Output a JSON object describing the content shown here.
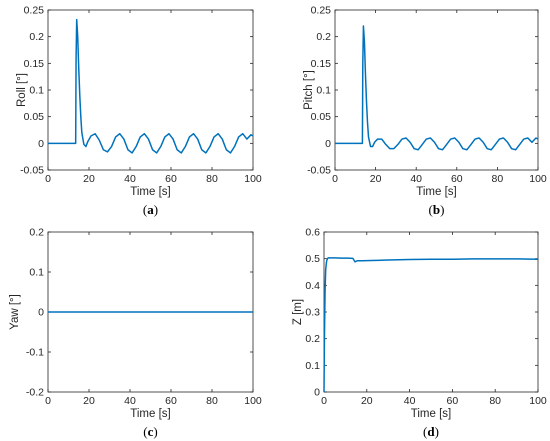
{
  "chart_data": [
    {
      "type": "line",
      "sublabel_open": "(",
      "sublabel_letter": "a",
      "sublabel_close": ")",
      "xlabel": "Time [s]",
      "ylabel": "Roll [°]",
      "xlim": [
        0,
        100
      ],
      "ylim": [
        -0.05,
        0.25
      ],
      "xticks": [
        "0",
        "20",
        "40",
        "60",
        "80",
        "100"
      ],
      "yticks": [
        "-0.05",
        "0",
        "0.05",
        "0.1",
        "0.15",
        "0.2",
        "0.25"
      ],
      "grid": false,
      "color": "#0072BD",
      "series": [
        {
          "x": [
            0,
            13.5,
            13.7,
            14.0,
            14.5,
            15.0,
            15.5,
            16.0,
            16.5,
            17.5,
            18.5,
            19.5,
            21.0,
            23.0,
            25.0,
            27.0,
            29.0,
            31.0,
            33.0,
            35.0,
            37.0,
            39.0,
            41.0,
            43.0,
            45.0,
            47.0,
            49.0,
            51.0,
            53.0,
            55.0,
            57.0,
            59.0,
            61.0,
            63.0,
            65.0,
            67.0,
            69.0,
            71.0,
            73.0,
            75.0,
            77.0,
            79.0,
            81.0,
            83.0,
            85.0,
            87.0,
            89.0,
            91.0,
            93.0,
            95.0,
            97.0,
            99.0,
            100.0
          ],
          "y": [
            0,
            0,
            0.16,
            0.232,
            0.2,
            0.14,
            0.09,
            0.05,
            0.02,
            -0.002,
            -0.006,
            0.004,
            0.014,
            0.018,
            0.006,
            -0.012,
            -0.016,
            -0.006,
            0.012,
            0.018,
            0.008,
            -0.012,
            -0.018,
            -0.006,
            0.012,
            0.018,
            0.008,
            -0.012,
            -0.018,
            -0.006,
            0.012,
            0.018,
            0.008,
            -0.012,
            -0.018,
            -0.006,
            0.012,
            0.018,
            0.008,
            -0.012,
            -0.018,
            -0.006,
            0.012,
            0.018,
            0.008,
            -0.012,
            -0.018,
            -0.006,
            0.012,
            0.018,
            0.008,
            0.016,
            0.014
          ]
        }
      ]
    },
    {
      "type": "line",
      "sublabel_open": "(",
      "sublabel_letter": "b",
      "sublabel_close": ")",
      "xlabel": "Time [s]",
      "ylabel": "Pitch [°]",
      "xlim": [
        0,
        100
      ],
      "ylim": [
        -0.05,
        0.25
      ],
      "xticks": [
        "0",
        "20",
        "40",
        "60",
        "80",
        "100"
      ],
      "yticks": [
        "-0.05",
        "0",
        "0.05",
        "0.1",
        "0.15",
        "0.2",
        "0.25"
      ],
      "grid": false,
      "color": "#0072BD",
      "series": [
        {
          "x": [
            0,
            13.5,
            13.7,
            14.0,
            14.5,
            15.0,
            15.5,
            16.0,
            16.5,
            17.5,
            18.5,
            19.5,
            21.0,
            23.0,
            25.0,
            27.0,
            29.0,
            31.0,
            33.0,
            35.0,
            37.0,
            39.0,
            41.0,
            43.0,
            45.0,
            47.0,
            49.0,
            51.0,
            53.0,
            55.0,
            57.0,
            59.0,
            61.0,
            63.0,
            65.0,
            67.0,
            69.0,
            71.0,
            73.0,
            75.0,
            77.0,
            79.0,
            81.0,
            83.0,
            85.0,
            87.0,
            89.0,
            91.0,
            93.0,
            95.0,
            97.0,
            99.0,
            100.0
          ],
          "y": [
            0,
            0,
            0.15,
            0.22,
            0.19,
            0.13,
            0.08,
            0.04,
            0.012,
            -0.006,
            -0.006,
            0.002,
            0.008,
            0.008,
            -0.002,
            -0.01,
            -0.01,
            -0.002,
            0.008,
            0.01,
            0.002,
            -0.01,
            -0.012,
            -0.002,
            0.008,
            0.01,
            0.002,
            -0.01,
            -0.012,
            -0.002,
            0.008,
            0.01,
            0.002,
            -0.01,
            -0.012,
            -0.002,
            0.008,
            0.01,
            0.002,
            -0.01,
            -0.012,
            -0.002,
            0.008,
            0.01,
            0.002,
            -0.01,
            -0.012,
            -0.002,
            0.008,
            0.01,
            0.002,
            0.01,
            0.008
          ]
        }
      ]
    },
    {
      "type": "line",
      "sublabel_open": "(",
      "sublabel_letter": "c",
      "sublabel_close": ")",
      "xlabel": "Time [s]",
      "ylabel": "Yaw [°]",
      "xlim": [
        0,
        100
      ],
      "ylim": [
        -0.2,
        0.2
      ],
      "xticks": [
        "0",
        "20",
        "40",
        "60",
        "80",
        "100"
      ],
      "yticks": [
        "-0.2",
        "-0.1",
        "0",
        "0.1",
        "0.2"
      ],
      "grid": false,
      "color": "#0072BD",
      "series": [
        {
          "x": [
            0,
            100
          ],
          "y": [
            0,
            0
          ]
        }
      ]
    },
    {
      "type": "line",
      "sublabel_open": "(",
      "sublabel_letter": "d",
      "sublabel_close": ")",
      "xlabel": "Time [s]",
      "ylabel": "Z [m]",
      "xlim": [
        0,
        100
      ],
      "ylim": [
        0,
        0.6
      ],
      "xticks": [
        "0",
        "20",
        "40",
        "60",
        "80",
        "100"
      ],
      "yticks": [
        "0",
        "0.1",
        "0.2",
        "0.3",
        "0.4",
        "0.5",
        "0.6"
      ],
      "grid": false,
      "color": "#0072BD",
      "series": [
        {
          "x": [
            0,
            0.2,
            0.5,
            0.8,
            1.2,
            1.6,
            2.0,
            3.0,
            5.0,
            8.0,
            11.0,
            13.5,
            14.5,
            15.5,
            18.0,
            22.0,
            30.0,
            40.0,
            50.0,
            60.0,
            70.0,
            80.0,
            90.0,
            100.0
          ],
          "y": [
            0,
            0.2,
            0.38,
            0.46,
            0.49,
            0.5,
            0.503,
            0.503,
            0.503,
            0.502,
            0.502,
            0.501,
            0.488,
            0.492,
            0.492,
            0.493,
            0.495,
            0.497,
            0.498,
            0.498,
            0.499,
            0.499,
            0.499,
            0.498
          ]
        }
      ]
    }
  ]
}
